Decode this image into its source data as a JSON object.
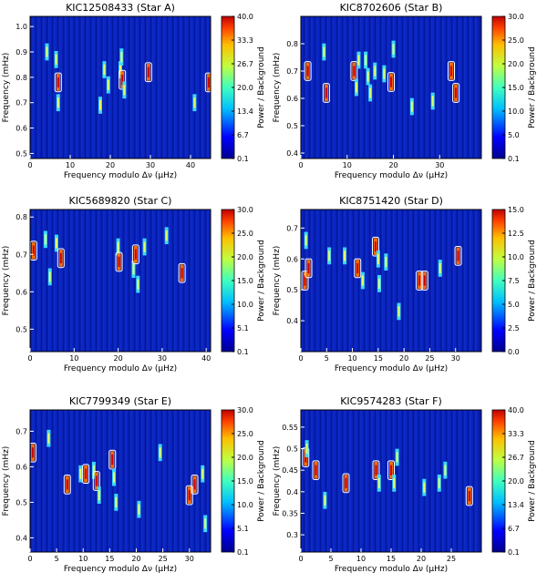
{
  "chart_data": [
    {
      "type": "heatmap",
      "title": "KIC12508433 (Star A)",
      "xlabel": "Frequency modulo Δν (μHz)",
      "ylabel": "Frequency (mHz)",
      "colorbar_label": "Power / Background",
      "xlim": [
        0,
        45
      ],
      "ylim": [
        0.48,
        1.04
      ],
      "xticks": [
        0,
        10,
        20,
        30,
        40
      ],
      "yticks": [
        0.5,
        0.6,
        0.7,
        0.8,
        0.9,
        1.0
      ],
      "cbar_ticks": [
        "0.1",
        "6.7",
        "13.4",
        "20.0",
        "26.7",
        "33.3",
        "40.0"
      ],
      "modes": [
        {
          "x": 4.2,
          "y": 0.9
        },
        {
          "x": 6.5,
          "y": 0.87
        },
        {
          "x": 7.0,
          "y": 0.78,
          "marked": true
        },
        {
          "x": 7.0,
          "y": 0.7
        },
        {
          "x": 18.5,
          "y": 0.83
        },
        {
          "x": 19.5,
          "y": 0.77
        },
        {
          "x": 22.5,
          "y": 0.83
        },
        {
          "x": 23.0,
          "y": 0.79,
          "marked": true
        },
        {
          "x": 23.5,
          "y": 0.75
        },
        {
          "x": 22.8,
          "y": 0.88
        },
        {
          "x": 29.5,
          "y": 0.82,
          "marked": true
        },
        {
          "x": 41.0,
          "y": 0.7
        },
        {
          "x": 44.5,
          "y": 0.78,
          "marked": true
        },
        {
          "x": 17.5,
          "y": 0.69
        }
      ]
    },
    {
      "type": "heatmap",
      "title": "KIC8702606 (Star B)",
      "xlabel": "Frequency modulo Δν (μHz)",
      "ylabel": "Frequency (mHz)",
      "colorbar_label": "Power / Background",
      "xlim": [
        0,
        39
      ],
      "ylim": [
        0.38,
        0.9
      ],
      "xticks": [
        0,
        10,
        20,
        30
      ],
      "yticks": [
        0.4,
        0.5,
        0.6,
        0.7,
        0.8
      ],
      "cbar_ticks": [
        "0.1",
        "5.0",
        "10.0",
        "15.0",
        "20.0",
        "25.0",
        "30.0"
      ],
      "modes": [
        {
          "x": 1.5,
          "y": 0.7,
          "marked": true
        },
        {
          "x": 5.5,
          "y": 0.62,
          "marked": true
        },
        {
          "x": 5.0,
          "y": 0.77
        },
        {
          "x": 11.5,
          "y": 0.7,
          "marked": true
        },
        {
          "x": 12.0,
          "y": 0.64
        },
        {
          "x": 12.5,
          "y": 0.74
        },
        {
          "x": 14.5,
          "y": 0.68
        },
        {
          "x": 15.0,
          "y": 0.62
        },
        {
          "x": 18.0,
          "y": 0.69
        },
        {
          "x": 19.5,
          "y": 0.66,
          "marked": true
        },
        {
          "x": 20.0,
          "y": 0.78
        },
        {
          "x": 24.0,
          "y": 0.57
        },
        {
          "x": 28.5,
          "y": 0.59
        },
        {
          "x": 32.5,
          "y": 0.7,
          "marked": true
        },
        {
          "x": 33.5,
          "y": 0.62,
          "marked": true
        },
        {
          "x": 14.0,
          "y": 0.74
        },
        {
          "x": 16.0,
          "y": 0.7
        }
      ]
    },
    {
      "type": "heatmap",
      "title": "KIC5689820 (Star C)",
      "xlabel": "Frequency modulo Δν (μHz)",
      "ylabel": "Frequency (mHz)",
      "colorbar_label": "Power / Background",
      "xlim": [
        0,
        41
      ],
      "ylim": [
        0.44,
        0.82
      ],
      "xticks": [
        0,
        10,
        20,
        30,
        40
      ],
      "yticks": [
        0.5,
        0.6,
        0.7,
        0.8
      ],
      "cbar_ticks": [
        "0.1",
        "5.1",
        "10.0",
        "15.0",
        "20.0",
        "25.0",
        "30.0"
      ],
      "modes": [
        {
          "x": 0.8,
          "y": 0.71,
          "marked": true
        },
        {
          "x": 3.5,
          "y": 0.74
        },
        {
          "x": 4.5,
          "y": 0.64
        },
        {
          "x": 6.0,
          "y": 0.73
        },
        {
          "x": 7.0,
          "y": 0.69,
          "marked": true
        },
        {
          "x": 20.0,
          "y": 0.72
        },
        {
          "x": 20.2,
          "y": 0.68,
          "marked": true
        },
        {
          "x": 23.5,
          "y": 0.66
        },
        {
          "x": 24.0,
          "y": 0.7,
          "marked": true
        },
        {
          "x": 24.5,
          "y": 0.62
        },
        {
          "x": 26.0,
          "y": 0.72
        },
        {
          "x": 34.5,
          "y": 0.65,
          "marked": true
        },
        {
          "x": 31.0,
          "y": 0.75
        }
      ]
    },
    {
      "type": "heatmap",
      "title": "KIC8751420 (Star D)",
      "xlabel": "Frequency modulo Δν (μHz)",
      "ylabel": "Frequency (mHz)",
      "colorbar_label": "Power / Background",
      "xlim": [
        0,
        35
      ],
      "ylim": [
        0.3,
        0.76
      ],
      "xticks": [
        0,
        5,
        10,
        15,
        20,
        25,
        30
      ],
      "yticks": [
        0.4,
        0.5,
        0.6,
        0.7
      ],
      "cbar_ticks": [
        "0.0",
        "2.5",
        "5.0",
        "7.5",
        "10.0",
        "12.5",
        "15.0"
      ],
      "modes": [
        {
          "x": 0.8,
          "y": 0.53,
          "marked": true
        },
        {
          "x": 1.5,
          "y": 0.57,
          "marked": true
        },
        {
          "x": 1.0,
          "y": 0.66
        },
        {
          "x": 5.5,
          "y": 0.61
        },
        {
          "x": 11.0,
          "y": 0.57,
          "marked": true
        },
        {
          "x": 12.0,
          "y": 0.53
        },
        {
          "x": 14.5,
          "y": 0.64,
          "marked": true
        },
        {
          "x": 15.0,
          "y": 0.6
        },
        {
          "x": 15.2,
          "y": 0.52
        },
        {
          "x": 16.5,
          "y": 0.59
        },
        {
          "x": 19.0,
          "y": 0.43
        },
        {
          "x": 23.0,
          "y": 0.53,
          "marked": true
        },
        {
          "x": 24.0,
          "y": 0.53,
          "marked": true
        },
        {
          "x": 27.0,
          "y": 0.57
        },
        {
          "x": 30.5,
          "y": 0.61,
          "marked": true
        },
        {
          "x": 8.5,
          "y": 0.61
        }
      ]
    },
    {
      "type": "heatmap",
      "title": "KIC7799349 (Star E)",
      "xlabel": "Frequency modulo Δν (μHz)",
      "ylabel": "Frequency (mHz)",
      "colorbar_label": "Power / Background",
      "xlim": [
        0,
        34
      ],
      "ylim": [
        0.36,
        0.76
      ],
      "xticks": [
        0,
        5,
        10,
        15,
        20,
        25,
        30
      ],
      "yticks": [
        0.4,
        0.5,
        0.6,
        0.7
      ],
      "cbar_ticks": [
        "0.1",
        "5.1",
        "10.0",
        "15.0",
        "20.0",
        "25.0",
        "30.0"
      ],
      "modes": [
        {
          "x": 0.5,
          "y": 0.64,
          "marked": true
        },
        {
          "x": 3.5,
          "y": 0.68
        },
        {
          "x": 7.0,
          "y": 0.55,
          "marked": true
        },
        {
          "x": 9.5,
          "y": 0.58
        },
        {
          "x": 10.5,
          "y": 0.58,
          "marked": true
        },
        {
          "x": 12.0,
          "y": 0.59
        },
        {
          "x": 12.5,
          "y": 0.56,
          "marked": true
        },
        {
          "x": 13.0,
          "y": 0.52
        },
        {
          "x": 15.5,
          "y": 0.62,
          "marked": true
        },
        {
          "x": 15.8,
          "y": 0.57
        },
        {
          "x": 16.2,
          "y": 0.5
        },
        {
          "x": 20.5,
          "y": 0.48
        },
        {
          "x": 30.0,
          "y": 0.52,
          "marked": true
        },
        {
          "x": 31.0,
          "y": 0.55,
          "marked": true
        },
        {
          "x": 32.5,
          "y": 0.58
        },
        {
          "x": 33.0,
          "y": 0.44
        },
        {
          "x": 24.5,
          "y": 0.64
        }
      ]
    },
    {
      "type": "heatmap",
      "title": "KIC9574283 (Star F)",
      "xlabel": "Frequency modulo Δν (μHz)",
      "ylabel": "Frequency (mHz)",
      "colorbar_label": "Power / Background",
      "xlim": [
        0,
        30
      ],
      "ylim": [
        0.26,
        0.59
      ],
      "xticks": [
        0,
        5,
        10,
        15,
        20,
        25
      ],
      "yticks": [
        0.3,
        0.35,
        0.4,
        0.45,
        0.5,
        0.55
      ],
      "cbar_ticks": [
        "0.1",
        "6.7",
        "13.4",
        "20.0",
        "26.7",
        "33.3",
        "40.0"
      ],
      "modes": [
        {
          "x": 0.8,
          "y": 0.48,
          "marked": true
        },
        {
          "x": 1.0,
          "y": 0.5
        },
        {
          "x": 2.5,
          "y": 0.45,
          "marked": true
        },
        {
          "x": 4.0,
          "y": 0.38
        },
        {
          "x": 7.5,
          "y": 0.42,
          "marked": true
        },
        {
          "x": 12.5,
          "y": 0.45,
          "marked": true
        },
        {
          "x": 13.0,
          "y": 0.42
        },
        {
          "x": 15.0,
          "y": 0.45,
          "marked": true
        },
        {
          "x": 15.5,
          "y": 0.42
        },
        {
          "x": 16.0,
          "y": 0.48
        },
        {
          "x": 20.5,
          "y": 0.41
        },
        {
          "x": 23.0,
          "y": 0.42
        },
        {
          "x": 24.0,
          "y": 0.45
        },
        {
          "x": 28.0,
          "y": 0.39,
          "marked": true
        }
      ]
    }
  ]
}
